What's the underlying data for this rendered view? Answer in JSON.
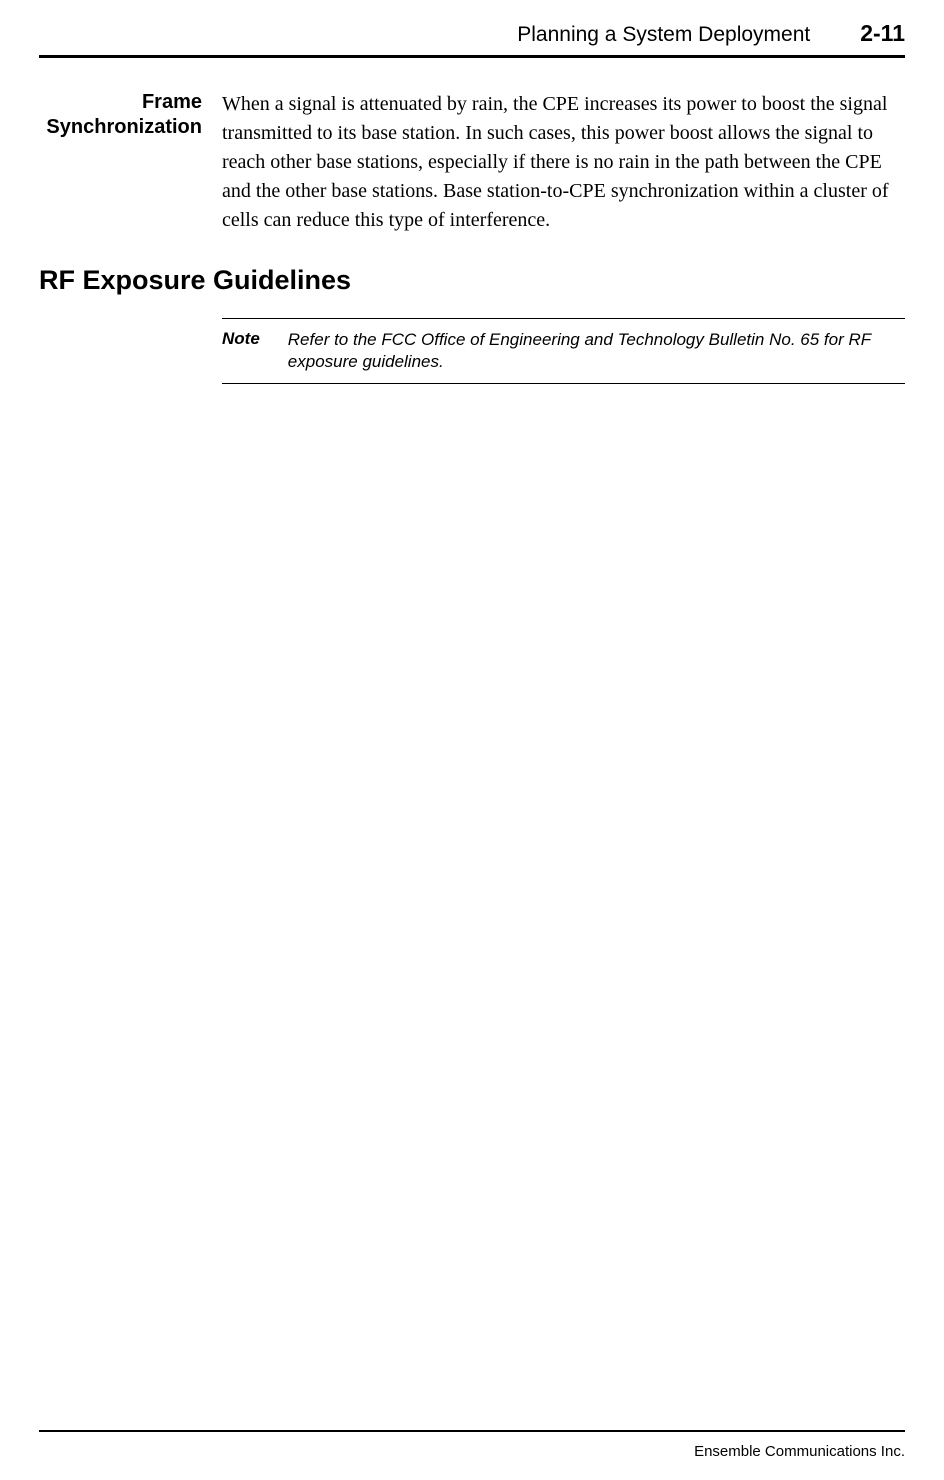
{
  "header": {
    "title": "Planning a System Deployment",
    "page_number": "2-11"
  },
  "sections": {
    "frame_sync": {
      "heading": "Frame Synchronization",
      "body": "When a signal is attenuated by rain, the CPE increases its power to boost the signal transmitted to its base station. In such cases, this power boost allows the signal to reach other base stations, especially if there is no rain in the path between the CPE and the other base stations. Base station-to-CPE synchronization within a cluster of cells can reduce this type of interference."
    },
    "rf_exposure": {
      "heading": "RF Exposure Guidelines",
      "note_label": "Note",
      "note_text": "Refer to the FCC Office of Engineering and Technology Bulletin No. 65 for RF exposure guidelines."
    }
  },
  "footer": {
    "company": "Ensemble Communications Inc."
  },
  "colors": {
    "text": "#000000",
    "background": "#ffffff",
    "rule": "#000000"
  },
  "fonts": {
    "heading_family": "Helvetica, Arial, sans-serif",
    "body_family": "Book Antiqua, Palatino, Georgia, serif",
    "header_title_size": 21,
    "header_page_size": 23,
    "side_heading_size": 20,
    "body_size": 20,
    "main_heading_size": 27,
    "note_size": 17,
    "footer_size": 15
  }
}
